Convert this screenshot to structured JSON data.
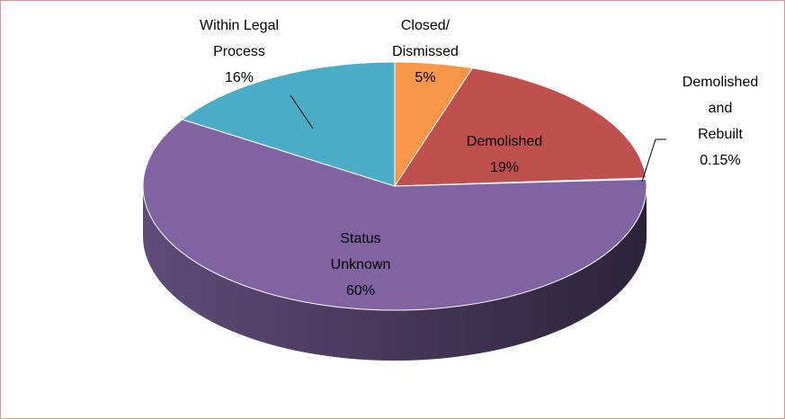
{
  "chart_data": {
    "type": "pie",
    "categories": [
      "Closed/\nDismissed",
      "Demolished",
      "Demolished and\nRebuilt",
      "Status\nUnknown",
      "Within Legal\nProcess"
    ],
    "values": [
      5,
      19,
      0.15,
      60,
      16
    ],
    "value_labels": [
      "5%",
      "19%",
      "0.15%",
      "60%",
      "16%"
    ],
    "colors": [
      "#f79646",
      "#c0504d",
      "#9bbb59",
      "#8064a2",
      "#4bacc6"
    ]
  }
}
